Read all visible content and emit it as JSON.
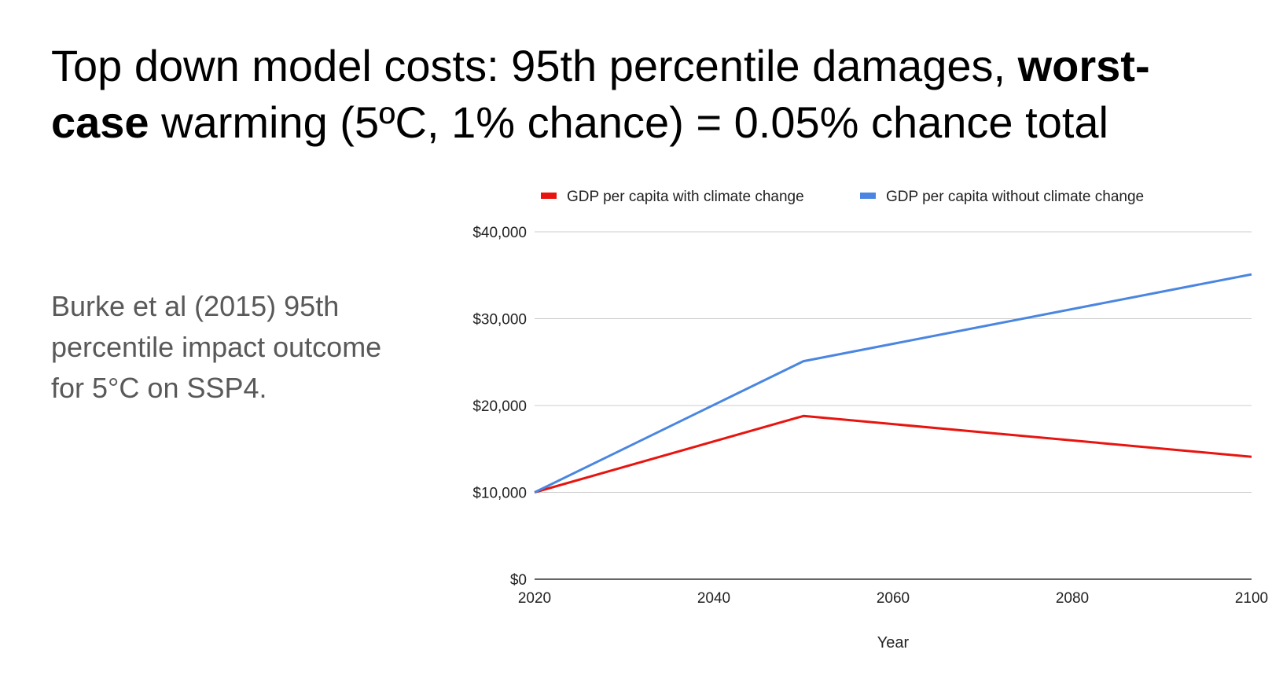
{
  "slide": {
    "title_part1": "Top down model costs: 95th percentile damages, ",
    "title_bold": "worst-case",
    "title_part2": " warming (5ºC, 1% chance) = 0.05% chance total",
    "body": "Burke et al (2015) 95th percentile impact outcome for 5°C on SSP4."
  },
  "chart_data": {
    "type": "line",
    "title": "",
    "xlabel": "Year",
    "ylabel": "",
    "x": [
      2020,
      2050,
      2100
    ],
    "xlim": [
      2020,
      2100
    ],
    "ylim": [
      0,
      40000
    ],
    "x_ticks": [
      2020,
      2040,
      2060,
      2080,
      2100
    ],
    "x_tick_labels": [
      "2020",
      "2040",
      "2060",
      "2080",
      "2100"
    ],
    "y_ticks": [
      0,
      10000,
      20000,
      30000,
      40000
    ],
    "y_tick_labels": [
      "$0",
      "$10,000",
      "$20,000",
      "$30,000",
      "$40,000"
    ],
    "grid": true,
    "legend_position": "top",
    "series": [
      {
        "name": "GDP per capita with climate change",
        "color": "#e8140f",
        "values": [
          10000,
          18800,
          14100
        ]
      },
      {
        "name": "GDP per capita without climate change",
        "color": "#4a86e0",
        "values": [
          10000,
          25100,
          35100
        ]
      }
    ]
  }
}
